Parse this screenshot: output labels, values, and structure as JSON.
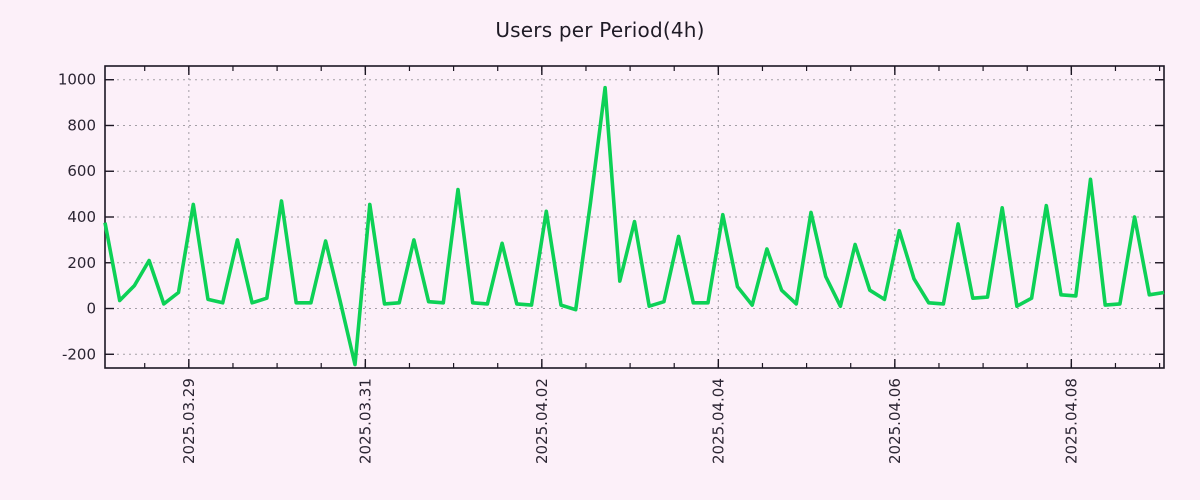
{
  "chart_data": {
    "type": "line",
    "title": "Users per Period(4h)",
    "xlabel": "",
    "ylabel": "",
    "period_hours": 4,
    "grid": true,
    "legend": "none",
    "y_ticks": [
      -200,
      0,
      200,
      400,
      600,
      800,
      1000
    ],
    "ylim": [
      -260,
      1060
    ],
    "x_index_range": [
      0,
      72
    ],
    "x_tick_labels": [
      "2025.03.29",
      "2025.03.31",
      "2025.04.02",
      "2025.04.04",
      "2025.04.06",
      "2025.04.08"
    ],
    "x_tick_indices": [
      5.7,
      17.7,
      29.7,
      41.7,
      53.7,
      65.7
    ],
    "x_minor_tick_start_index": 2.7,
    "x_minor_tick_step": 3,
    "series": [
      {
        "name": "users",
        "color": "#0dd156",
        "values": [
          375,
          35,
          100,
          210,
          20,
          70,
          455,
          40,
          25,
          300,
          25,
          45,
          470,
          25,
          25,
          295,
          30,
          -245,
          455,
          20,
          25,
          300,
          30,
          25,
          520,
          25,
          20,
          285,
          20,
          15,
          425,
          15,
          -5,
          460,
          965,
          120,
          380,
          10,
          30,
          315,
          25,
          25,
          410,
          95,
          15,
          260,
          80,
          20,
          420,
          140,
          10,
          280,
          80,
          40,
          340,
          130,
          25,
          20,
          370,
          45,
          50,
          440,
          10,
          45,
          450,
          60,
          55,
          565,
          15,
          20,
          400,
          60,
          70
        ]
      }
    ]
  },
  "colors": {
    "background": "#fcf0f9",
    "axis": "#1c1623",
    "grid": "#a39fa6",
    "text": "#2b2533",
    "series_green": "#0dd156"
  }
}
